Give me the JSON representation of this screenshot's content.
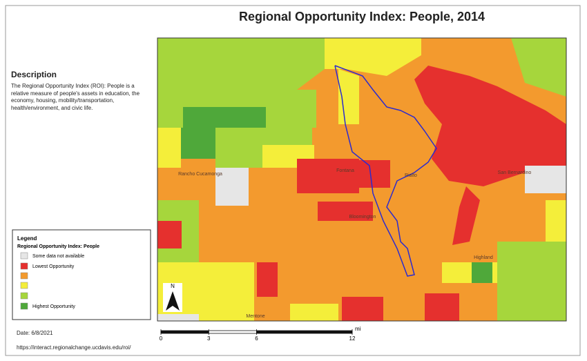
{
  "title": "Regional Opportunity Index: People, 2014",
  "description": {
    "heading": "Description",
    "text": "The Regional Opportunity Index (ROI): People is a relative measure of people's assets in education, the economy, housing, mobility/transportation, health/environment, and civic life."
  },
  "legend": {
    "heading": "Legend",
    "title": "Regional Opportunity Index: People",
    "items": [
      {
        "color": "#e6e6e6",
        "label": "Some data not available"
      },
      {
        "color": "#e5302e",
        "label": "Lowest Opportunity"
      },
      {
        "color": "#f39a2e"
      },
      {
        "color": "#f4ee3a"
      },
      {
        "color": "#a6d63c"
      },
      {
        "color": "#4fa83a",
        "label": "Highest Opportunity"
      }
    ]
  },
  "date": "Date: 6/8/2021",
  "url": "https://interact.regionalchange.ucdavis.edu/roi/",
  "scale": {
    "unit": "mi",
    "ticks": [
      0,
      3,
      6,
      12
    ]
  },
  "north": "N",
  "places": [
    "Rancho Cucamonga",
    "Fontana",
    "Rialto",
    "San Bernardino",
    "Bloomington",
    "Highland",
    "Mentone"
  ]
}
